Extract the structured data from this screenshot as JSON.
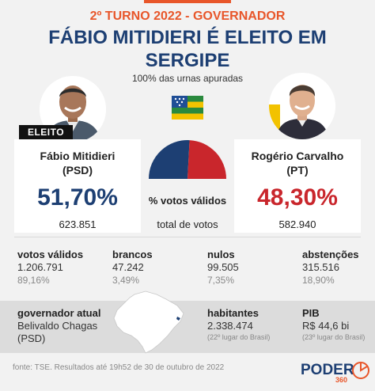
{
  "header": {
    "kicker": "2º TURNO 2022 - GOVERNADOR",
    "title_line1": "FÁBIO MITIDIERI É ELEITO EM",
    "title_line2": "SERGIPE",
    "subtitle": "100% das urnas apuradas"
  },
  "badge": {
    "label": "ELEITO"
  },
  "candidates": [
    {
      "name": "Fábio Mitidieri",
      "party": "(PSD)",
      "percent": "51,70%",
      "votes": "623.851",
      "color": "#1d3f73"
    },
    {
      "name": "Rogério Carvalho",
      "party": "(PT)",
      "percent": "48,30%",
      "votes": "582.940",
      "color": "#c9262c"
    }
  ],
  "middle": {
    "label1": "% votos válidos",
    "label2": "total de votos"
  },
  "chart_data": {
    "type": "pie",
    "title": "",
    "labels": [
      "Fábio Mitidieri (PSD)",
      "Rogério Carvalho (PT)"
    ],
    "values": [
      51.7,
      48.3
    ],
    "colors": [
      "#1d3f73",
      "#c9262c"
    ],
    "style": "semicircle"
  },
  "stats": [
    {
      "label": "votos válidos",
      "value": "1.206.791",
      "pct": "89,16%"
    },
    {
      "label": "brancos",
      "value": "47.242",
      "pct": "3,49%"
    },
    {
      "label": "nulos",
      "value": "99.505",
      "pct": "7,35%"
    },
    {
      "label": "abstenções",
      "value": "315.516",
      "pct": "18,90%"
    }
  ],
  "bottom": {
    "gov_label": "governador atual",
    "gov_name": "Belivaldo Chagas",
    "gov_party": "(PSD)",
    "hab_label": "habitantes",
    "hab_value": "2.338.474",
    "hab_rank": "(22º lugar do Brasil)",
    "pib_label": "PIB",
    "pib_value": "R$ 44,6 bi",
    "pib_rank": "(23º lugar do Brasil)"
  },
  "source": "fonte: TSE. Resultados até 19h52 de 30 de outubro de 2022",
  "logo": {
    "word": "PODER",
    "number": "360"
  }
}
